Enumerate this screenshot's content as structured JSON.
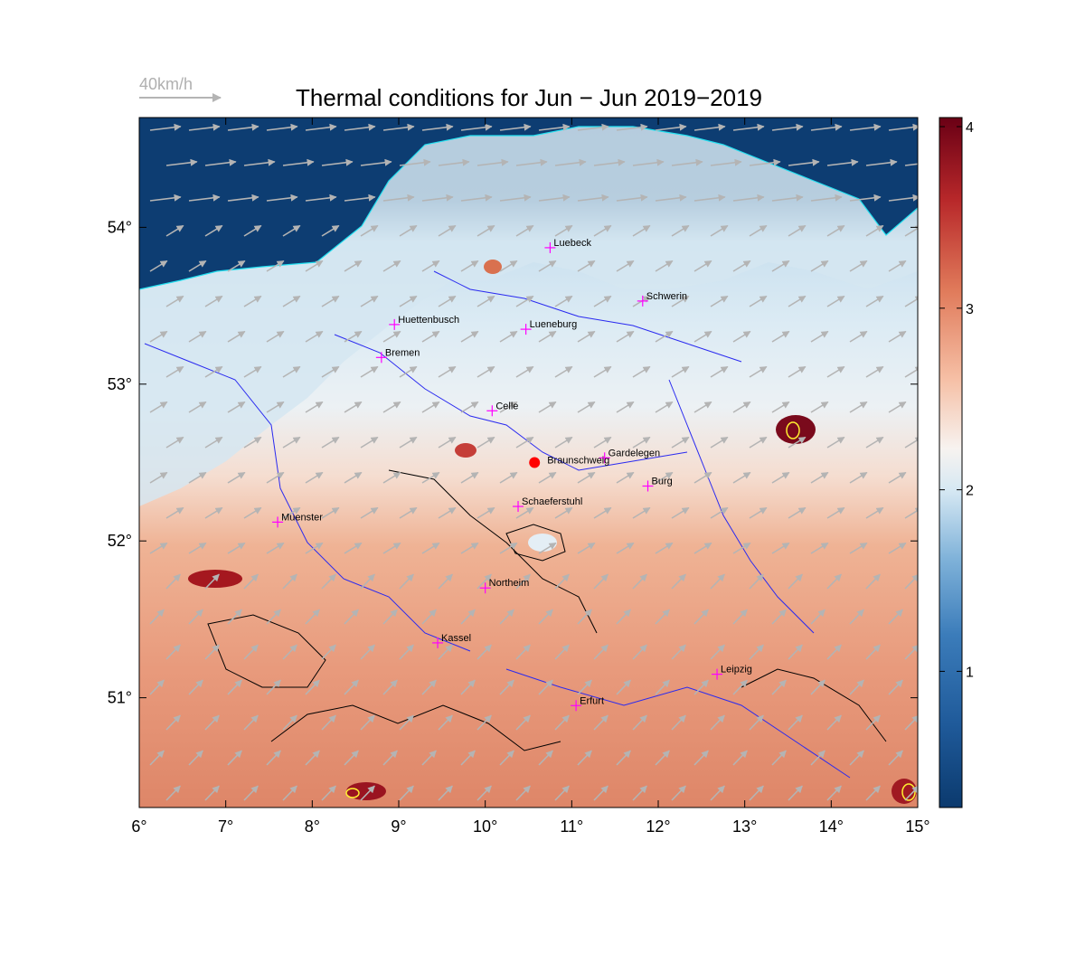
{
  "title": "Thermal conditions for Jun − Jun  2019−2019",
  "wind_scale": {
    "label": "40km/h"
  },
  "axes": {
    "x_ticks": [
      "6°",
      "7°",
      "8°",
      "9°",
      "10°",
      "11°",
      "12°",
      "13°",
      "14°",
      "15°"
    ],
    "y_ticks": [
      "51°",
      "52°",
      "53°",
      "54°"
    ],
    "x_range": [
      6,
      15
    ],
    "y_range": [
      50.3,
      54.7
    ]
  },
  "colorbar": {
    "ticks": [
      "1",
      "2",
      "3",
      "4"
    ],
    "range": [
      0.25,
      4.05
    ],
    "colors": [
      "#0b3a6e",
      "#2a6cb0",
      "#7fb2d9",
      "#d6e8f3",
      "#f7f3f0",
      "#f6c0a6",
      "#e07a5a",
      "#b8282a",
      "#6a0015"
    ]
  },
  "base_point": {
    "name": "Braunschweig",
    "lon": 10.57,
    "lat": 52.5,
    "color": "#ff0000"
  },
  "cities": [
    {
      "name": "Luebeck",
      "lon": 10.75,
      "lat": 53.87
    },
    {
      "name": "Schwerin",
      "lon": 11.82,
      "lat": 53.53
    },
    {
      "name": "Huettenbusch",
      "lon": 8.95,
      "lat": 53.38
    },
    {
      "name": "Lueneburg",
      "lon": 10.47,
      "lat": 53.35
    },
    {
      "name": "Bremen",
      "lon": 8.8,
      "lat": 53.17
    },
    {
      "name": "Celle",
      "lon": 10.08,
      "lat": 52.83
    },
    {
      "name": "Gardelegen",
      "lon": 11.38,
      "lat": 52.53
    },
    {
      "name": "Burg",
      "lon": 11.88,
      "lat": 52.35
    },
    {
      "name": "Muenster",
      "lon": 7.6,
      "lat": 52.12
    },
    {
      "name": "Schaeferstuhl",
      "lon": 10.38,
      "lat": 52.22
    },
    {
      "name": "Northeim",
      "lon": 10.0,
      "lat": 51.7
    },
    {
      "name": "Kassel",
      "lon": 9.45,
      "lat": 51.35
    },
    {
      "name": "Leipzig",
      "lon": 12.68,
      "lat": 51.15
    },
    {
      "name": "Erfurt",
      "lon": 11.05,
      "lat": 50.95
    }
  ]
}
